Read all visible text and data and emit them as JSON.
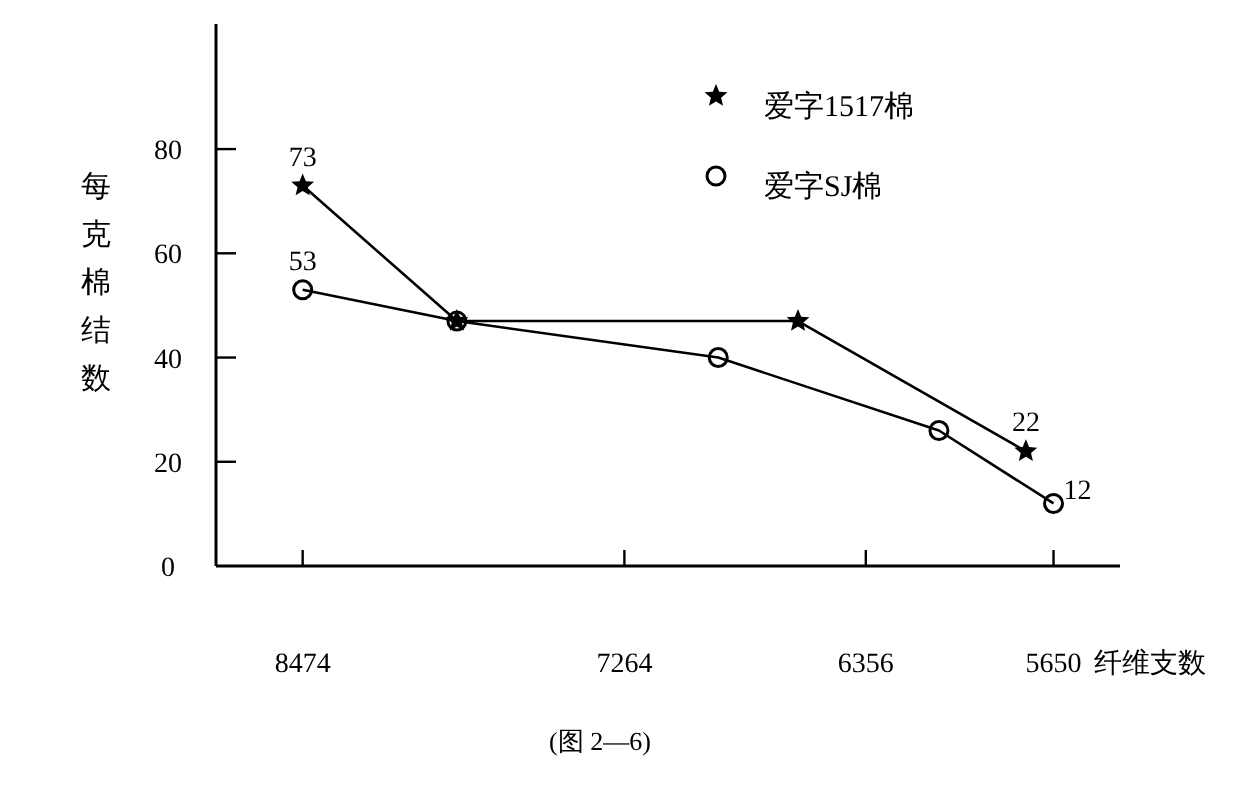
{
  "chart_data": {
    "type": "line",
    "xlabel": "纤维支数",
    "ylabel": "每克棉结数",
    "annotations": [
      "(图 2—6)"
    ],
    "xlim": [
      8800,
      5400
    ],
    "xticks": [
      8474,
      7264,
      6356,
      5650
    ],
    "ylim": [
      0,
      104
    ],
    "yticks": [
      0,
      20,
      40,
      60,
      80
    ],
    "series": [
      {
        "name": "爱字1517棉",
        "color": "#000000",
        "marker": "star",
        "x": [
          8474,
          7894,
          6611,
          5754
        ],
        "values": [
          73,
          47,
          47,
          22
        ],
        "value_labels": [
          "73",
          null,
          null,
          "22"
        ]
      },
      {
        "name": "爱字SJ棉",
        "color": "#000000",
        "marker": "circle",
        "x": [
          8474,
          7894,
          6911,
          6081,
          5650
        ],
        "values": [
          53,
          47,
          40,
          26,
          12
        ],
        "value_labels": [
          "53",
          null,
          null,
          null,
          "12"
        ]
      }
    ],
    "legend": "top right",
    "grid": false
  }
}
